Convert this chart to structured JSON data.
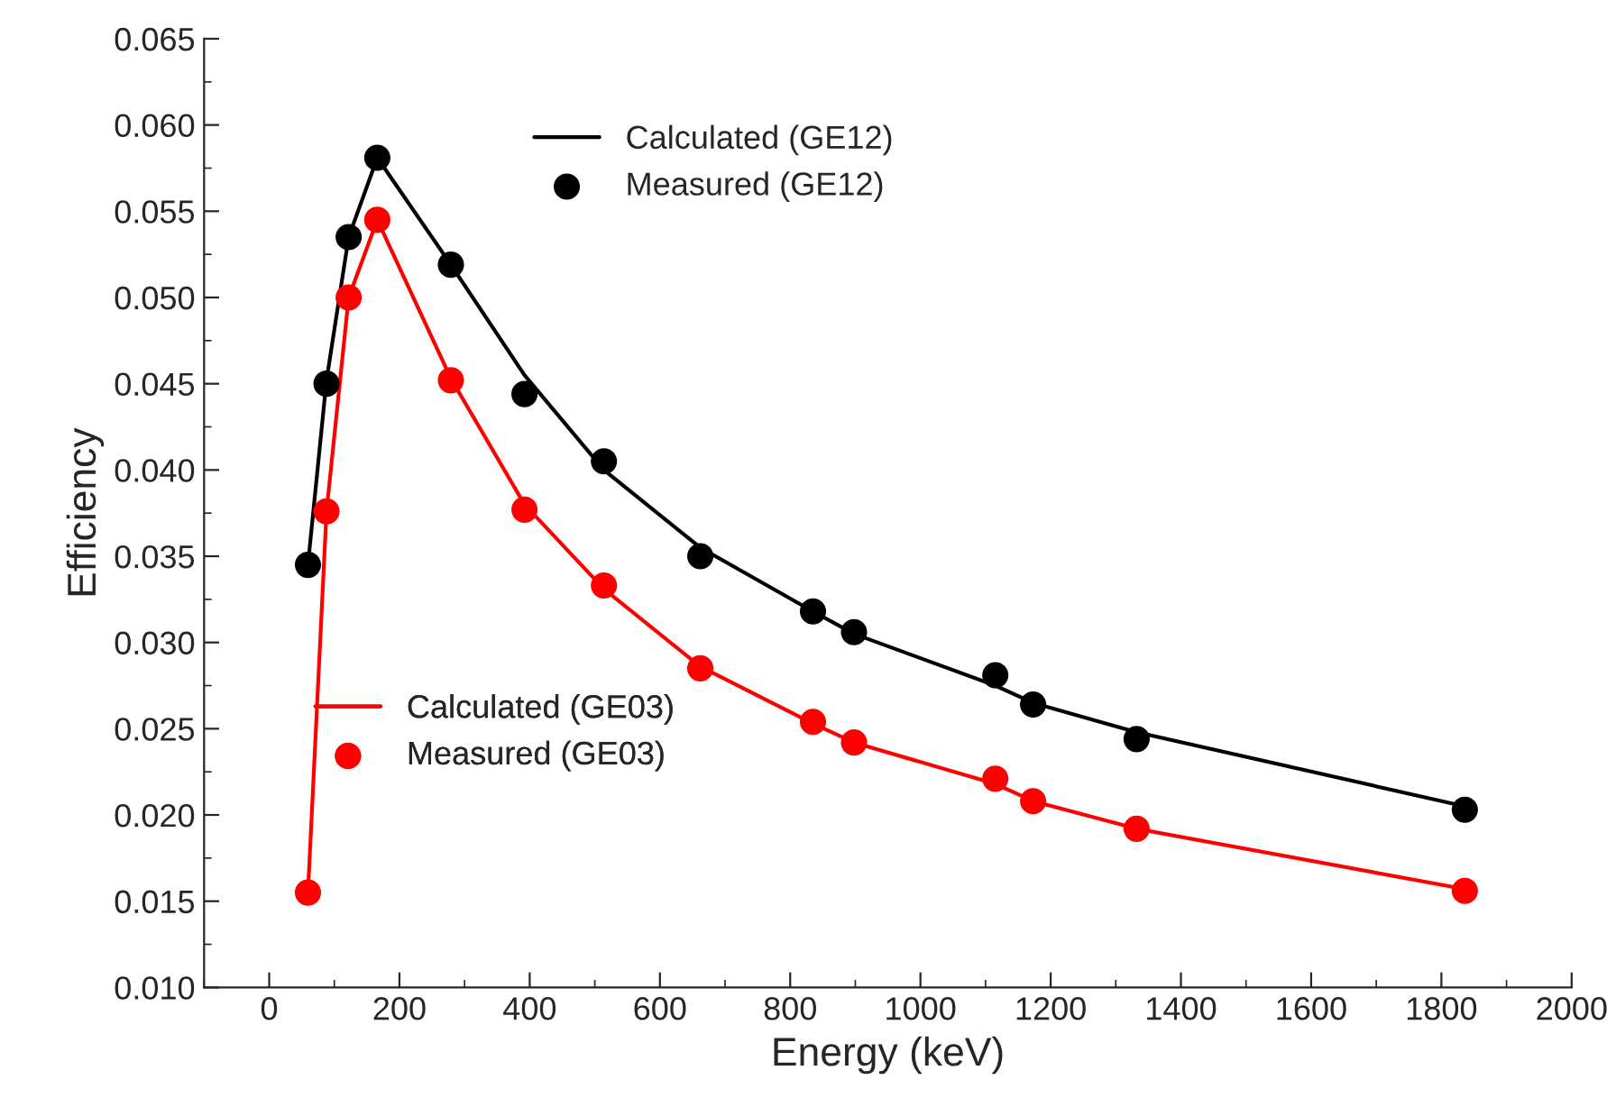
{
  "chart_data": {
    "type": "scatter",
    "xlabel": "Energy (keV)",
    "ylabel": "Efficiency",
    "xlim": [
      -100,
      2000
    ],
    "xticks": [
      0,
      200,
      400,
      600,
      800,
      1000,
      1200,
      1400,
      1600,
      1800,
      2000
    ],
    "ylim": [
      0.01,
      0.065
    ],
    "yticks": [
      {
        "value": 0.01,
        "label": "0.010"
      },
      {
        "value": 0.015,
        "label": "0.015"
      },
      {
        "value": 0.02,
        "label": "0.020"
      },
      {
        "value": 0.025,
        "label": "0.025"
      },
      {
        "value": 0.03,
        "label": "0.030"
      },
      {
        "value": 0.035,
        "label": "0.035"
      },
      {
        "value": 0.04,
        "label": "0.040"
      },
      {
        "value": 0.045,
        "label": "0.045"
      },
      {
        "value": 0.05,
        "label": "0.050"
      },
      {
        "value": 0.055,
        "label": "0.055"
      },
      {
        "value": 0.06,
        "label": "0.060"
      },
      {
        "value": 0.065,
        "label": "0.065"
      }
    ],
    "x": [
      59.5,
      88,
      122,
      166,
      279,
      392,
      514,
      662,
      835,
      898,
      1115,
      1173,
      1332,
      1836
    ],
    "grid": false,
    "legend": "top",
    "series": [
      {
        "name": "Calculated (GE12)",
        "type": "line",
        "color": "#000000",
        "marker": "none",
        "line_style": "solid",
        "values": [
          0.0345,
          0.0452,
          0.0535,
          0.0581,
          0.0519,
          0.0455,
          0.04,
          0.0355,
          0.0318,
          0.0305,
          0.0275,
          0.0265,
          0.0248,
          0.0205
        ]
      },
      {
        "name": "Measured (GE12)",
        "color": "#000000",
        "marker": "circle",
        "values": [
          0.0345,
          0.045,
          0.0535,
          0.0581,
          0.0519,
          0.0444,
          0.0405,
          0.035,
          0.0318,
          0.0306,
          0.0281,
          0.0264,
          0.0244,
          0.0203
        ]
      },
      {
        "name": "Calculated (GE03)",
        "type": "line",
        "color": "#ff0000",
        "marker": "none",
        "line_style": "solid",
        "values": [
          0.0155,
          0.0376,
          0.05,
          0.0545,
          0.0453,
          0.038,
          0.0331,
          0.0286,
          0.0253,
          0.0242,
          0.0218,
          0.0208,
          0.0192,
          0.0157
        ]
      },
      {
        "name": "Measured (GE03)",
        "color": "#ff0000",
        "marker": "circle",
        "values": [
          0.0155,
          0.0376,
          0.05,
          0.0545,
          0.0452,
          0.0377,
          0.0333,
          0.0285,
          0.0254,
          0.0242,
          0.0221,
          0.0208,
          0.0192,
          0.0156
        ]
      }
    ]
  }
}
